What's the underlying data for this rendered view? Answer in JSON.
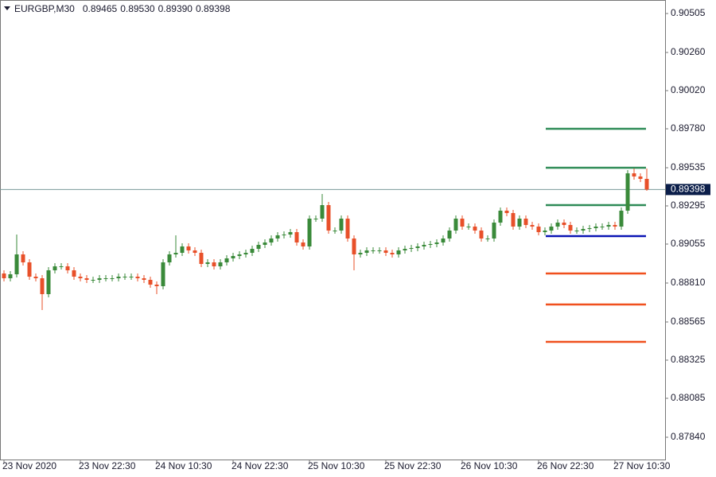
{
  "chart_data": {
    "type": "candlestick",
    "symbol": "EURGBP,M30",
    "header_values": [
      "0.89465",
      "0.89530",
      "0.89390",
      "0.89398"
    ],
    "categories": [
      "23 Nov 2020",
      null,
      null,
      null,
      null,
      null,
      null,
      null,
      null,
      null,
      null,
      null,
      "23 Nov 22:30",
      null,
      null,
      null,
      null,
      null,
      null,
      null,
      null,
      null,
      null,
      null,
      "24 Nov 10:30",
      null,
      null,
      null,
      null,
      null,
      null,
      null,
      null,
      null,
      null,
      null,
      "24 Nov 22:30",
      null,
      null,
      null,
      null,
      null,
      null,
      null,
      null,
      null,
      null,
      null,
      "25 Nov 10:30",
      null,
      null,
      null,
      null,
      null,
      null,
      null,
      null,
      null,
      null,
      null,
      "25 Nov 22:30",
      null,
      null,
      null,
      null,
      null,
      null,
      null,
      null,
      null,
      null,
      null,
      "26 Nov 10:30",
      null,
      null,
      null,
      null,
      null,
      null,
      null,
      null,
      null,
      null,
      null,
      "26 Nov 22:30",
      null,
      null,
      null,
      null,
      null,
      null,
      null,
      null,
      null,
      null,
      null,
      "27 Nov 10:30",
      null,
      null,
      null,
      null,
      null
    ],
    "open": [
      0.8887,
      0.8884,
      0.88865,
      0.8899,
      0.8894,
      0.8885,
      0.8884,
      0.8874,
      0.8889,
      0.88915,
      0.88915,
      0.8889,
      0.8885,
      0.8884,
      0.8883,
      0.8883,
      0.8884,
      0.8884,
      0.8884,
      0.8885,
      0.8885,
      0.8885,
      0.8884,
      0.8883,
      0.888,
      0.8879,
      0.8894,
      0.8899,
      0.89,
      0.8904,
      0.89015,
      0.89,
      0.8893,
      0.8894,
      0.88915,
      0.8894,
      0.88965,
      0.8898,
      0.8899,
      0.89,
      0.89025,
      0.8905,
      0.89065,
      0.8909,
      0.8911,
      0.89115,
      0.8913,
      0.89065,
      0.8904,
      0.89215,
      0.89215,
      0.893,
      0.8914,
      0.8914,
      0.89215,
      0.8909,
      0.8899,
      0.89,
      0.89015,
      0.89015,
      0.89015,
      0.89,
      0.8899,
      0.89015,
      0.89025,
      0.8903,
      0.8904,
      0.8905,
      0.89055,
      0.89065,
      0.8909,
      0.8914,
      0.89215,
      0.89165,
      0.89165,
      0.8914,
      0.8909,
      0.8909,
      0.8919,
      0.89265,
      0.8925,
      0.89165,
      0.89215,
      0.89175,
      0.89165,
      0.8913,
      0.8914,
      0.89165,
      0.8919,
      0.89175,
      0.8914,
      0.8914,
      0.8915,
      0.89155,
      0.89165,
      0.89165,
      0.89175,
      0.89165,
      0.89265,
      0.895,
      0.8948,
      0.89465
    ],
    "high": [
      0.8889,
      0.88885,
      0.89115,
      0.8901,
      0.8896,
      0.8887,
      0.8886,
      0.8891,
      0.88935,
      0.88935,
      0.88935,
      0.8891,
      0.8887,
      0.8886,
      0.8885,
      0.8886,
      0.8886,
      0.8886,
      0.8887,
      0.8887,
      0.8887,
      0.8887,
      0.8886,
      0.8885,
      0.8882,
      0.8896,
      0.8901,
      0.8911,
      0.8906,
      0.8906,
      0.89035,
      0.8902,
      0.8896,
      0.8896,
      0.8896,
      0.88985,
      0.89,
      0.8901,
      0.8902,
      0.89045,
      0.8907,
      0.89085,
      0.8911,
      0.8913,
      0.89135,
      0.8915,
      0.8915,
      0.89085,
      0.89235,
      0.89235,
      0.8937,
      0.8932,
      0.8916,
      0.89235,
      0.89235,
      0.8911,
      0.8902,
      0.89035,
      0.89035,
      0.89035,
      0.89035,
      0.8902,
      0.89035,
      0.89045,
      0.8905,
      0.8906,
      0.8907,
      0.89075,
      0.89085,
      0.8911,
      0.8916,
      0.89235,
      0.89235,
      0.89185,
      0.89185,
      0.8916,
      0.8911,
      0.8921,
      0.89285,
      0.89285,
      0.8927,
      0.89235,
      0.89235,
      0.89195,
      0.89185,
      0.8916,
      0.89185,
      0.8921,
      0.8921,
      0.89195,
      0.8916,
      0.8917,
      0.89175,
      0.89185,
      0.89185,
      0.89195,
      0.89195,
      0.89285,
      0.8952,
      0.8953,
      0.895,
      0.8953
    ],
    "low": [
      0.8882,
      0.8882,
      0.88845,
      0.8892,
      0.8883,
      0.8882,
      0.8864,
      0.8872,
      0.8887,
      0.88895,
      0.8887,
      0.8883,
      0.8882,
      0.8881,
      0.8881,
      0.8881,
      0.8882,
      0.8882,
      0.8882,
      0.8883,
      0.8883,
      0.8882,
      0.8881,
      0.8878,
      0.8874,
      0.8877,
      0.8892,
      0.8897,
      0.8898,
      0.88995,
      0.8898,
      0.8891,
      0.8891,
      0.88895,
      0.88895,
      0.8892,
      0.88945,
      0.8896,
      0.8897,
      0.8898,
      0.89005,
      0.8903,
      0.89045,
      0.8907,
      0.8909,
      0.89095,
      0.89045,
      0.8902,
      0.8902,
      0.89195,
      0.89195,
      0.8912,
      0.8912,
      0.8912,
      0.8907,
      0.8889,
      0.8897,
      0.8898,
      0.88995,
      0.88995,
      0.8898,
      0.8897,
      0.8897,
      0.88995,
      0.89005,
      0.8901,
      0.8902,
      0.8903,
      0.89035,
      0.89045,
      0.8907,
      0.8912,
      0.89145,
      0.89145,
      0.8912,
      0.8907,
      0.8907,
      0.8907,
      0.8917,
      0.8923,
      0.89145,
      0.89145,
      0.89155,
      0.89145,
      0.8911,
      0.8911,
      0.8912,
      0.89145,
      0.89155,
      0.8912,
      0.8912,
      0.8912,
      0.8913,
      0.89135,
      0.89145,
      0.89145,
      0.89145,
      0.89145,
      0.89245,
      0.8946,
      0.89445,
      0.8939
    ],
    "close": [
      0.8884,
      0.88865,
      0.8899,
      0.8894,
      0.8885,
      0.8884,
      0.8874,
      0.8889,
      0.88915,
      0.88915,
      0.8889,
      0.8885,
      0.8884,
      0.8883,
      0.8883,
      0.8884,
      0.8884,
      0.8884,
      0.8885,
      0.8885,
      0.8885,
      0.8884,
      0.8883,
      0.888,
      0.8879,
      0.8894,
      0.8899,
      0.89,
      0.8904,
      0.89015,
      0.89,
      0.8893,
      0.8894,
      0.88915,
      0.8894,
      0.88965,
      0.8898,
      0.8899,
      0.89,
      0.89025,
      0.8905,
      0.89065,
      0.8909,
      0.8911,
      0.89115,
      0.8913,
      0.89065,
      0.8904,
      0.89215,
      0.89215,
      0.893,
      0.8914,
      0.8914,
      0.89215,
      0.8909,
      0.8899,
      0.89,
      0.89015,
      0.89015,
      0.89015,
      0.89,
      0.8899,
      0.89015,
      0.89025,
      0.8903,
      0.8904,
      0.8905,
      0.89055,
      0.89065,
      0.8909,
      0.8914,
      0.89215,
      0.89165,
      0.89165,
      0.8914,
      0.8909,
      0.8909,
      0.8919,
      0.89265,
      0.8925,
      0.89165,
      0.89215,
      0.89175,
      0.89165,
      0.8913,
      0.8914,
      0.89165,
      0.8919,
      0.89175,
      0.8914,
      0.8914,
      0.8915,
      0.89155,
      0.89165,
      0.89165,
      0.89175,
      0.89165,
      0.89265,
      0.895,
      0.8948,
      0.89465,
      0.89398
    ],
    "up_color": "#3a8a3a",
    "down_color": "#e8502a",
    "ylim": [
      0.877,
      0.9059
    ],
    "yticks": [
      0.90505,
      {
        "value": 0.9026,
        "label": "0.90260"
      },
      {
        "value": 0.9002,
        "label": "0.90020"
      },
      {
        "value": 0.8978,
        "label": "0.89780"
      },
      0.89535,
      0.89295,
      0.89055,
      {
        "value": 0.8881,
        "label": "0.88810"
      },
      0.88565,
      0.88325,
      0.88085,
      {
        "value": 0.8784,
        "label": "0.87840"
      }
    ],
    "levels": [
      {
        "value": 0.8978,
        "color": "#2e8b57"
      },
      {
        "value": 0.89535,
        "color": "#2e8b57"
      },
      {
        "value": 0.893,
        "color": "#2e8b57"
      },
      {
        "value": 0.89105,
        "color": "#0a14b4"
      },
      {
        "value": 0.8887,
        "color": "#f0501e"
      },
      {
        "value": 0.88675,
        "color": "#f0501e"
      },
      {
        "value": 0.8844,
        "color": "#f0501e"
      }
    ],
    "price_line_color": "#7a9a9a",
    "price_label_color": "#0b1e4a"
  }
}
